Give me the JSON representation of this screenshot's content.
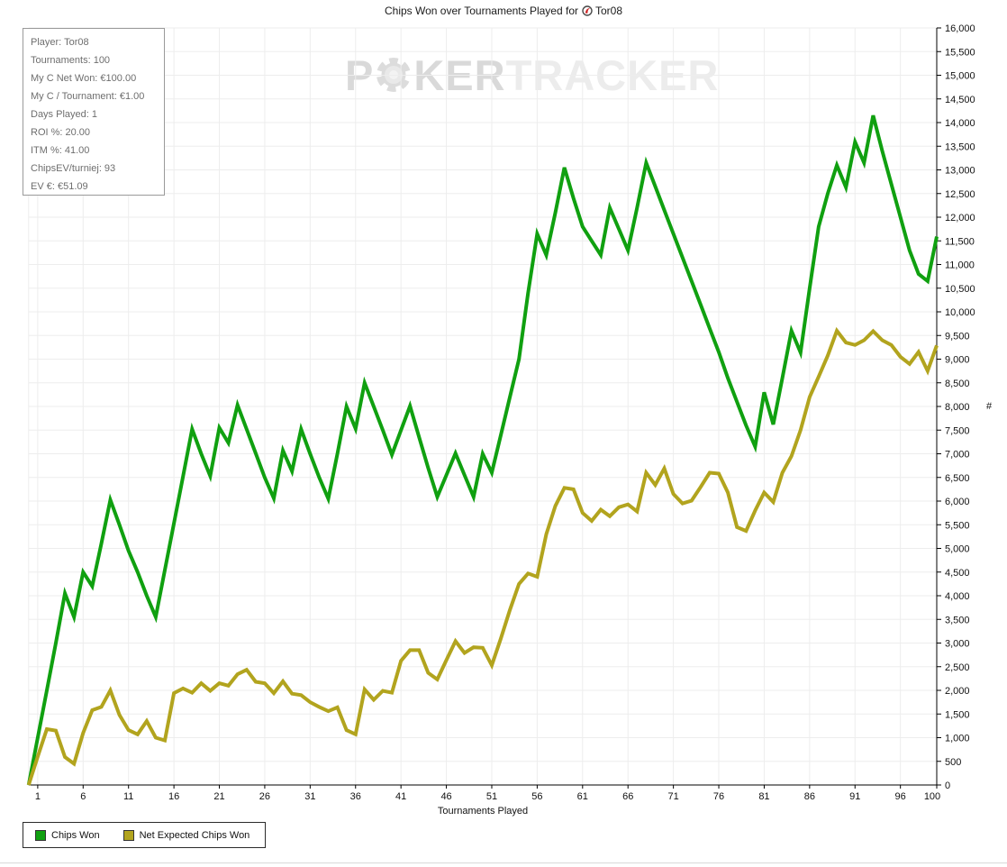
{
  "title": {
    "prefix": "Chips Won over Tournaments Played for",
    "player": "Tor08"
  },
  "watermark": {
    "p1": "P",
    "p2": "KER",
    "p3": "TRACKER"
  },
  "tooltip": {
    "lines": [
      "Player: Tor08",
      "Tournaments: 100",
      "My C Net Won: €100.00",
      "My C / Tournament: €1.00",
      "Days Played: 1",
      "ROI %: 20.00",
      "ITM %: 41.00",
      "ChipsEV/turniej: 93",
      "EV €: €51.09"
    ]
  },
  "axes": {
    "x_label": "Tournaments Played",
    "y_title": "#"
  },
  "chart_data": {
    "type": "line",
    "title": "Chips Won over Tournaments Played for Tor08",
    "xlabel": "Tournaments Played",
    "ylabel": "#",
    "x_start": 0,
    "x_end": 100,
    "x_ticks": [
      1,
      6,
      11,
      16,
      21,
      26,
      31,
      36,
      41,
      46,
      51,
      56,
      61,
      66,
      71,
      76,
      81,
      86,
      91,
      96,
      100
    ],
    "ylim": [
      0,
      16000
    ],
    "y_step": 500,
    "grid": true,
    "legend_position": "bottom-left",
    "grid_color": "#ededed",
    "axis_color": "#000000",
    "series": [
      {
        "name": "Chips Won",
        "color": "#10a010",
        "values": [
          0,
          1000,
          2000,
          3000,
          4050,
          3550,
          4500,
          4200,
          5100,
          6025,
          5500,
          4950,
          4500,
          4000,
          3550,
          4540,
          5530,
          6520,
          7520,
          7000,
          6530,
          7550,
          7230,
          8030,
          7520,
          7010,
          6500,
          6060,
          7070,
          6630,
          7520,
          7000,
          6500,
          6050,
          7000,
          8000,
          7530,
          8500,
          8000,
          7500,
          6980,
          7500,
          8010,
          7350,
          6700,
          6090,
          6550,
          7010,
          6550,
          6090,
          7000,
          6600,
          7400,
          8200,
          9000,
          10400,
          11650,
          11200,
          12100,
          13050,
          12400,
          11800,
          11500,
          11200,
          12200,
          11750,
          11300,
          12200,
          13150,
          12650,
          12150,
          11650,
          11150,
          10650,
          10150,
          9650,
          9150,
          8600,
          8100,
          7600,
          7150,
          8300,
          7620,
          8600,
          9600,
          9140,
          10500,
          11800,
          12500,
          13100,
          12630,
          13590,
          13150,
          14150,
          13400,
          12700,
          12000,
          11300,
          10800,
          10650,
          11590
        ]
      },
      {
        "name": "Net Expected Chips Won",
        "color": "#b2a41e",
        "values": [
          0,
          600,
          1180,
          1150,
          590,
          450,
          1100,
          1580,
          1650,
          2000,
          1480,
          1160,
          1070,
          1350,
          1000,
          940,
          1940,
          2040,
          1950,
          2150,
          1990,
          2150,
          2100,
          2340,
          2435,
          2180,
          2150,
          1940,
          2190,
          1930,
          1900,
          1750,
          1650,
          1560,
          1640,
          1160,
          1070,
          2020,
          1800,
          1990,
          1950,
          2625,
          2850,
          2850,
          2370,
          2230,
          2640,
          3040,
          2790,
          2910,
          2900,
          2530,
          3100,
          3700,
          4250,
          4470,
          4400,
          5300,
          5900,
          6280,
          6250,
          5750,
          5580,
          5820,
          5680,
          5870,
          5930,
          5780,
          6600,
          6340,
          6690,
          6150,
          5950,
          6010,
          6300,
          6600,
          6580,
          6180,
          5450,
          5370,
          5800,
          6180,
          5980,
          6600,
          6950,
          7500,
          8200,
          8630,
          9075,
          9600,
          9350,
          9300,
          9400,
          9590,
          9400,
          9300,
          9050,
          8900,
          9150,
          8750,
          9290
        ]
      }
    ]
  }
}
